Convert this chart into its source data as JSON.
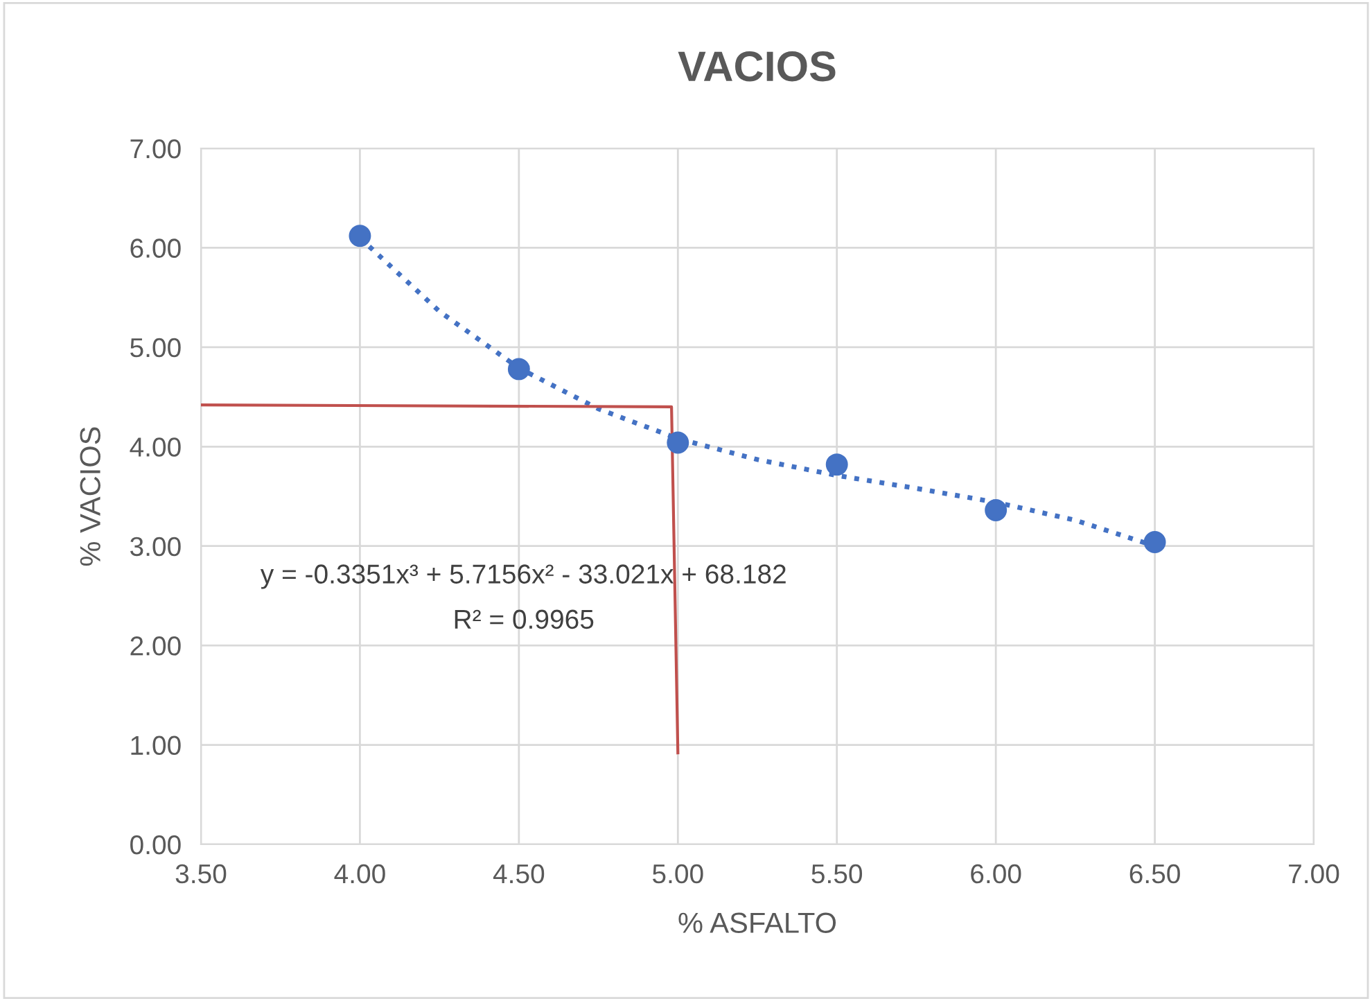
{
  "chart_data": {
    "type": "scatter",
    "title": "VACIOS",
    "xlabel": "% ASFALTO",
    "ylabel": "% VACIOS",
    "xlim": [
      3.5,
      7.0
    ],
    "xticks": [
      {
        "value": 3.5,
        "label": "3.50"
      },
      {
        "value": 4.0,
        "label": "4.00"
      },
      {
        "value": 4.5,
        "label": "4.50"
      },
      {
        "value": 5.0,
        "label": "5.00"
      },
      {
        "value": 5.5,
        "label": "5.50"
      },
      {
        "value": 6.0,
        "label": "6.00"
      },
      {
        "value": 6.5,
        "label": "6.50"
      },
      {
        "value": 7.0,
        "label": "7.00"
      }
    ],
    "ylim": [
      0,
      7
    ],
    "yticks": [
      {
        "value": 0,
        "label": "0.00"
      },
      {
        "value": 1,
        "label": "1.00"
      },
      {
        "value": 2,
        "label": "2.00"
      },
      {
        "value": 3,
        "label": "3.00"
      },
      {
        "value": 4,
        "label": "4.00"
      },
      {
        "value": 5,
        "label": "5.00"
      },
      {
        "value": 6,
        "label": "6.00"
      },
      {
        "value": 7,
        "label": "7.00"
      }
    ],
    "grid": true,
    "legend": false,
    "series": [
      {
        "color": "#4472c4",
        "marker": "circle",
        "x": [
          4.0,
          4.5,
          5.0,
          5.5,
          6.0,
          6.5
        ],
        "values": [
          6.12,
          4.78,
          4.04,
          3.82,
          3.36,
          3.04
        ]
      },
      {
        "type": "line",
        "color": "#4472c4",
        "marker": "none",
        "line_style": "dotted",
        "x": [
          4.0,
          4.25,
          4.5,
          4.75,
          5.0,
          5.25,
          5.5,
          5.75,
          6.0,
          6.25,
          6.5
        ],
        "values": [
          6.1,
          5.36,
          4.79,
          4.38,
          4.08,
          3.87,
          3.71,
          3.58,
          3.44,
          3.26,
          3.0
        ]
      },
      {
        "type": "line",
        "color": "#c0504d",
        "marker": "none",
        "line_style": "solid",
        "x": [
          3.5,
          4.98,
          5.0
        ],
        "values": [
          4.42,
          4.4,
          0.92
        ]
      }
    ],
    "annotations": [
      "y = -0.3351x³ + 5.7156x² - 33.021x + 68.182",
      "R² = 0.9965"
    ]
  }
}
